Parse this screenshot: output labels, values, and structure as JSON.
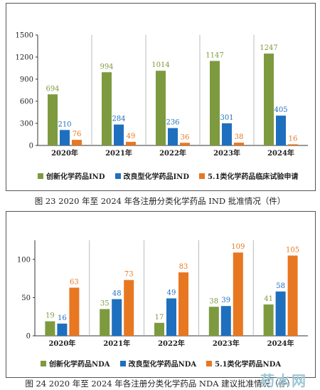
{
  "figure1": {
    "caption": "图 23   2020 年至 2024 年各注册分类化学药品 IND 批准情况（件）",
    "legend": [
      "创新化学药品IND",
      "改良型化学药品IND",
      "5.1类化学药品临床试验申请"
    ]
  },
  "figure2": {
    "caption": "图 24   2020 年至 2024 年各注册分类化学药品 NDA 建议批准情况（件）",
    "legend": [
      "创新化学药品NDA",
      "改良型化学药品NDA",
      "5.1类化学药品NDA"
    ]
  },
  "colors": {
    "green": "#7e9a3f",
    "blue": "#1f6fbf",
    "orange": "#e87722"
  },
  "chart_data": [
    {
      "type": "bar",
      "categories": [
        "2020年",
        "2021年",
        "2022年",
        "2023年",
        "2024年"
      ],
      "series": [
        {
          "name": "创新化学药品IND",
          "values": [
            694,
            994,
            1014,
            1147,
            1247
          ]
        },
        {
          "name": "改良型化学药品IND",
          "values": [
            210,
            284,
            236,
            301,
            405
          ]
        },
        {
          "name": "5.1类化学药品临床试验申请",
          "values": [
            76,
            49,
            36,
            38,
            16
          ]
        }
      ],
      "yticks": [
        0,
        300,
        600,
        900,
        1200,
        1500
      ],
      "ylim": [
        0,
        1500
      ],
      "legend_position": "bottom"
    },
    {
      "type": "bar",
      "categories": [
        "2020年",
        "2021年",
        "2022年",
        "2023年",
        "2024年"
      ],
      "series": [
        {
          "name": "创新化学药品NDA",
          "values": [
            19,
            35,
            17,
            38,
            41
          ]
        },
        {
          "name": "改良型化学药品NDA",
          "values": [
            16,
            48,
            49,
            39,
            58
          ]
        },
        {
          "name": "5.1类化学药品NDA",
          "values": [
            63,
            73,
            83,
            109,
            105
          ]
        }
      ],
      "yticks": [
        0,
        50,
        100
      ],
      "ylim": [
        0,
        125
      ],
      "legend_position": "bottom"
    }
  ],
  "watermark": "药水网"
}
